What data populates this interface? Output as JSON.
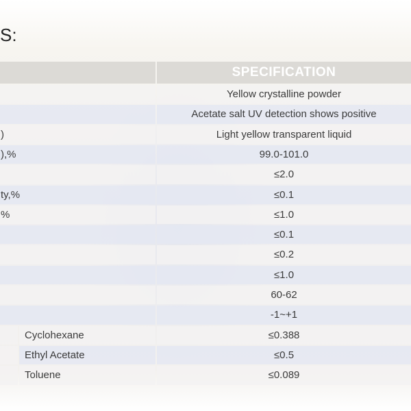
{
  "title": "S:",
  "table": {
    "header": {
      "item": "",
      "specification": "SPECIFICATION"
    },
    "rows": [
      {
        "item": "",
        "spec": "Yellow crystalline powder"
      },
      {
        "item": "",
        "spec": "Acetate salt UV detection shows positive"
      },
      {
        "item": ")",
        "spec": "Light yellow transparent liquid"
      },
      {
        "item": "),%",
        "spec": "99.0-101.0"
      },
      {
        "item": "",
        "spec": "≤2.0"
      },
      {
        "item": "ty,%",
        "spec": "≤0.1"
      },
      {
        "item": "%",
        "spec": "≤1.0"
      },
      {
        "item": "",
        "spec": "≤0.1"
      },
      {
        "item": "",
        "spec": "≤0.2"
      },
      {
        "item": "",
        "spec": "≤1.0"
      },
      {
        "item": "",
        "spec": "60-62"
      },
      {
        "item": "",
        "spec": "-1~+1"
      },
      {
        "item": "Cyclohexane",
        "spec": "≤0.388",
        "sub": true
      },
      {
        "item": "Ethyl Acetate",
        "spec": "≤0.5",
        "sub": true
      },
      {
        "item": "Toluene",
        "spec": "≤0.089",
        "sub": true
      }
    ]
  }
}
